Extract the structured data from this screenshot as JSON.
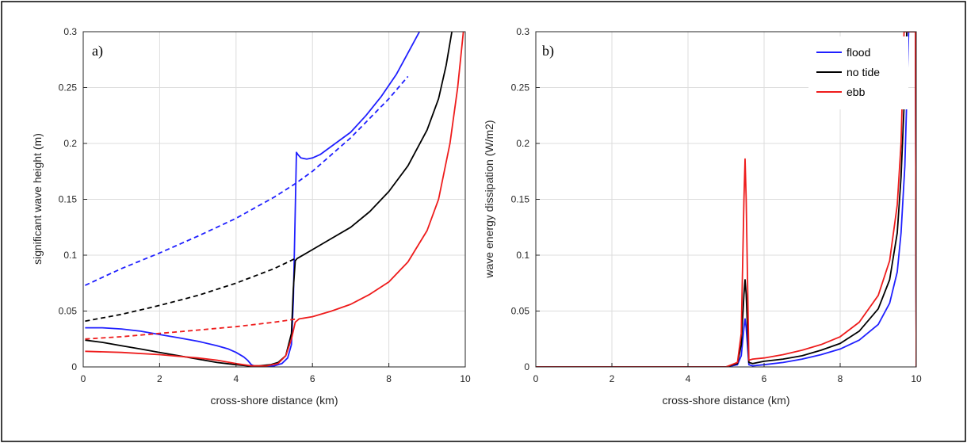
{
  "chart_data": [
    {
      "type": "line",
      "panel_label": "a)",
      "xlabel": "cross-shore distance (km)",
      "ylabel": "significant wave height (m)",
      "xlim": [
        0,
        10
      ],
      "ylim": [
        0,
        0.3
      ],
      "xticks": [
        "0",
        "2",
        "4",
        "6",
        "8",
        "10"
      ],
      "yticks": [
        "0",
        "0.05",
        "0.1",
        "0.15",
        "0.2",
        "0.25",
        "0.3"
      ],
      "grid": true,
      "legend": false,
      "series": [
        {
          "color": "#2020ff",
          "style": "solid",
          "x": [
            0.05,
            0.5,
            1.0,
            1.5,
            2.0,
            2.5,
            3.0,
            3.5,
            3.8,
            4.0,
            4.2,
            4.3,
            4.4,
            4.5,
            4.8,
            5.0,
            5.2,
            5.35,
            5.45,
            5.5,
            5.55,
            5.58,
            5.62,
            5.7,
            5.85,
            6.0,
            6.2,
            6.6,
            7.0,
            7.4,
            7.8,
            8.2,
            8.5,
            8.8
          ],
          "y": [
            0.035,
            0.035,
            0.034,
            0.032,
            0.029,
            0.026,
            0.023,
            0.019,
            0.016,
            0.013,
            0.009,
            0.006,
            0.002,
            0.0005,
            0.0005,
            0.001,
            0.003,
            0.008,
            0.02,
            0.06,
            0.14,
            0.192,
            0.19,
            0.187,
            0.186,
            0.187,
            0.19,
            0.2,
            0.21,
            0.225,
            0.242,
            0.262,
            0.281,
            0.3
          ]
        },
        {
          "color": "#2020ff",
          "style": "dashed",
          "x": [
            0.05,
            1.0,
            2.0,
            3.0,
            4.0,
            5.0,
            5.55,
            6.0,
            7.0,
            8.0,
            8.5
          ],
          "y": [
            0.073,
            0.088,
            0.102,
            0.117,
            0.133,
            0.152,
            0.164,
            0.175,
            0.205,
            0.24,
            0.26
          ]
        },
        {
          "color": "#000000",
          "style": "solid",
          "x": [
            0.05,
            0.5,
            1.0,
            1.5,
            2.0,
            2.5,
            3.0,
            3.5,
            4.0,
            4.3,
            4.6,
            4.9,
            5.1,
            5.3,
            5.45,
            5.5,
            5.55,
            5.6,
            6.0,
            6.5,
            7.0,
            7.5,
            8.0,
            8.5,
            9.0,
            9.3,
            9.5,
            9.65
          ],
          "y": [
            0.024,
            0.022,
            0.019,
            0.016,
            0.013,
            0.01,
            0.007,
            0.004,
            0.002,
            0.001,
            0.001,
            0.002,
            0.004,
            0.01,
            0.03,
            0.07,
            0.095,
            0.097,
            0.105,
            0.115,
            0.125,
            0.139,
            0.157,
            0.18,
            0.212,
            0.24,
            0.27,
            0.3
          ]
        },
        {
          "color": "#000000",
          "style": "dashed",
          "x": [
            0.05,
            1.0,
            2.0,
            3.0,
            4.0,
            5.0,
            5.55
          ],
          "y": [
            0.041,
            0.047,
            0.055,
            0.064,
            0.075,
            0.088,
            0.097
          ]
        },
        {
          "color": "#ee1c1c",
          "style": "solid",
          "x": [
            0.05,
            1.0,
            2.0,
            3.0,
            3.5,
            4.0,
            4.4,
            4.8,
            5.1,
            5.3,
            5.45,
            5.55,
            5.65,
            6.0,
            6.5,
            7.0,
            7.5,
            8.0,
            8.5,
            9.0,
            9.3,
            9.6,
            9.8,
            9.95
          ],
          "y": [
            0.014,
            0.013,
            0.011,
            0.008,
            0.006,
            0.003,
            0.001,
            0.001,
            0.003,
            0.01,
            0.025,
            0.04,
            0.043,
            0.045,
            0.05,
            0.056,
            0.065,
            0.076,
            0.094,
            0.122,
            0.15,
            0.2,
            0.25,
            0.3
          ]
        },
        {
          "color": "#ee1c1c",
          "style": "dashed",
          "x": [
            0.05,
            1.0,
            2.0,
            3.0,
            4.0,
            5.0,
            5.6
          ],
          "y": [
            0.025,
            0.027,
            0.03,
            0.033,
            0.036,
            0.04,
            0.043
          ]
        }
      ]
    },
    {
      "type": "line",
      "panel_label": "b)",
      "xlabel": "cross-shore distance (km)",
      "ylabel": "wave energy dissipation (W/m2)",
      "xlim": [
        0,
        10
      ],
      "ylim": [
        0,
        0.3
      ],
      "xticks": [
        "0",
        "2",
        "4",
        "6",
        "8",
        "10"
      ],
      "yticks": [
        "0",
        "0.05",
        "0.1",
        "0.15",
        "0.2",
        "0.25",
        "0.3"
      ],
      "grid": true,
      "legend": "top-right",
      "series": [
        {
          "name": "flood",
          "color": "#2020ff",
          "style": "solid",
          "x": [
            0,
            5.0,
            5.3,
            5.4,
            5.47,
            5.5,
            5.53,
            5.6,
            5.7,
            6.0,
            6.5,
            7.0,
            7.5,
            8.0,
            8.5,
            9.0,
            9.3,
            9.5,
            9.6,
            9.7,
            9.75,
            9.8,
            9.98,
            10.0
          ],
          "y": [
            0,
            0,
            0.002,
            0.01,
            0.035,
            0.043,
            0.035,
            0.002,
            0.001,
            0.002,
            0.004,
            0.007,
            0.011,
            0.016,
            0.024,
            0.038,
            0.057,
            0.085,
            0.12,
            0.18,
            0.24,
            0.3,
            0.3,
            0
          ]
        },
        {
          "name": "no tide",
          "color": "#000000",
          "style": "solid",
          "x": [
            0,
            5.0,
            5.3,
            5.4,
            5.47,
            5.5,
            5.53,
            5.6,
            5.7,
            6.0,
            6.5,
            7.0,
            7.5,
            8.0,
            8.5,
            9.0,
            9.3,
            9.5,
            9.6,
            9.7,
            9.75,
            9.98,
            10.0
          ],
          "y": [
            0,
            0,
            0.003,
            0.02,
            0.065,
            0.078,
            0.065,
            0.004,
            0.003,
            0.005,
            0.007,
            0.01,
            0.015,
            0.021,
            0.032,
            0.052,
            0.078,
            0.12,
            0.17,
            0.25,
            0.3,
            0.3,
            0
          ]
        },
        {
          "name": "ebb",
          "color": "#ee1c1c",
          "style": "solid",
          "x": [
            0,
            5.0,
            5.3,
            5.4,
            5.47,
            5.5,
            5.53,
            5.6,
            5.7,
            6.0,
            6.5,
            7.0,
            7.5,
            8.0,
            8.5,
            9.0,
            9.3,
            9.5,
            9.6,
            9.68,
            9.98,
            10.0
          ],
          "y": [
            0,
            0,
            0.004,
            0.03,
            0.15,
            0.186,
            0.15,
            0.006,
            0.007,
            0.008,
            0.011,
            0.015,
            0.02,
            0.027,
            0.04,
            0.064,
            0.095,
            0.145,
            0.2,
            0.3,
            0.3,
            0
          ]
        }
      ]
    }
  ]
}
